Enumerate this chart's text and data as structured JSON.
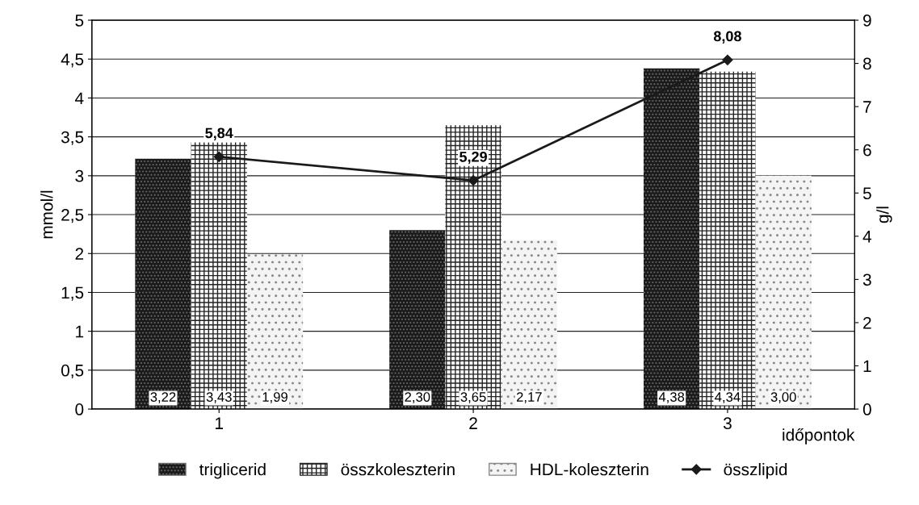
{
  "chart_data": {
    "type": "bar",
    "categories": [
      "1",
      "2",
      "3"
    ],
    "xlabel": "időpontok",
    "ylabel": "mmol/l",
    "y2label": "g/l",
    "series": [
      {
        "name": "triglicerid",
        "color": "#1a1a1a",
        "values": [
          3.22,
          2.3,
          4.38
        ],
        "value_labels": [
          "3,22",
          "2,30",
          "4,38"
        ]
      },
      {
        "name": "összkoleszterin",
        "color": "#ffffff",
        "values": [
          3.43,
          3.65,
          4.34
        ],
        "value_labels": [
          "3,43",
          "3,65",
          "4,34"
        ]
      },
      {
        "name": "HDL-koleszterin",
        "color": "#f4f4f4",
        "values": [
          1.99,
          2.17,
          3.0
        ],
        "value_labels": [
          "1,99",
          "2,17",
          "3,00"
        ]
      },
      {
        "name": "összlipid",
        "type": "line",
        "axis": "y2",
        "color": "#1a1a1a",
        "marker": "diamond",
        "values": [
          5.84,
          5.29,
          8.08
        ],
        "value_labels": [
          "5,84",
          "5,29",
          "8,08"
        ]
      }
    ],
    "ylim": [
      0,
      5
    ],
    "yticks": [
      0,
      {
        "value": 0.5,
        "label": "0,5"
      },
      1,
      {
        "value": 1.5,
        "label": "1,5"
      },
      2,
      {
        "value": 2.5,
        "label": "2,5"
      },
      3,
      {
        "value": 3.5,
        "label": "3,5"
      },
      4,
      {
        "value": 4.5,
        "label": "4,5"
      },
      5
    ],
    "y2lim": [
      0,
      9
    ],
    "y2ticks": [
      0,
      1,
      2,
      3,
      4,
      5,
      6,
      7,
      8,
      9
    ],
    "grid": "y",
    "legend": "bottom"
  }
}
